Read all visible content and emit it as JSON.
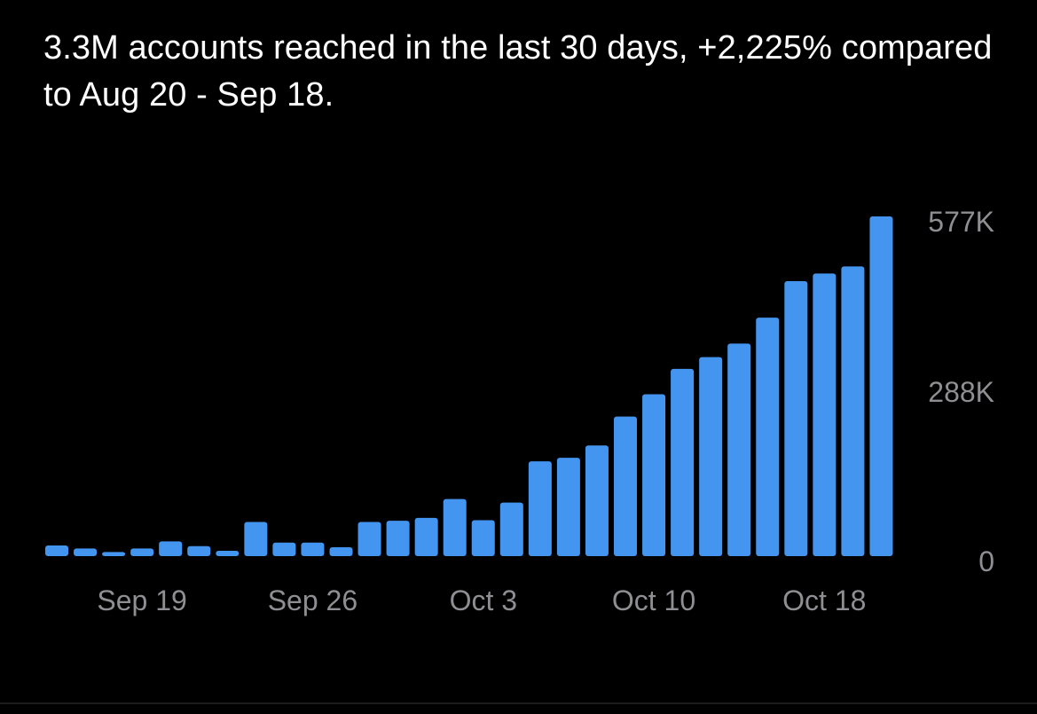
{
  "summary": {
    "text": "3.3M accounts reached in the last 30 days, +2,225% compared to Aug 20 - Sep 18."
  },
  "colors": {
    "bar": "#4495f0",
    "tick_text": "#8e8e93",
    "background": "#000000",
    "headline_text": "#ffffff"
  },
  "chart_data": {
    "type": "bar",
    "title": "",
    "xlabel": "",
    "ylabel": "",
    "x_tick_labels": [
      "Sep 19",
      "Sep 26",
      "Oct 3",
      "Oct 10",
      "Oct 18"
    ],
    "x_tick_indices": [
      3,
      9,
      15,
      21,
      27
    ],
    "y_tick_labels": [
      "577K",
      "288K",
      "0"
    ],
    "y_tick_values": [
      577000,
      288000,
      0
    ],
    "ylim": [
      0,
      577000
    ],
    "grid": false,
    "values": [
      18000,
      13000,
      7000,
      13000,
      25000,
      17000,
      9000,
      58000,
      23000,
      23000,
      15000,
      58000,
      60000,
      65000,
      97000,
      61000,
      91000,
      161000,
      167000,
      188000,
      237000,
      275000,
      318000,
      338000,
      361000,
      405000,
      467000,
      480000,
      492000,
      577000
    ]
  }
}
